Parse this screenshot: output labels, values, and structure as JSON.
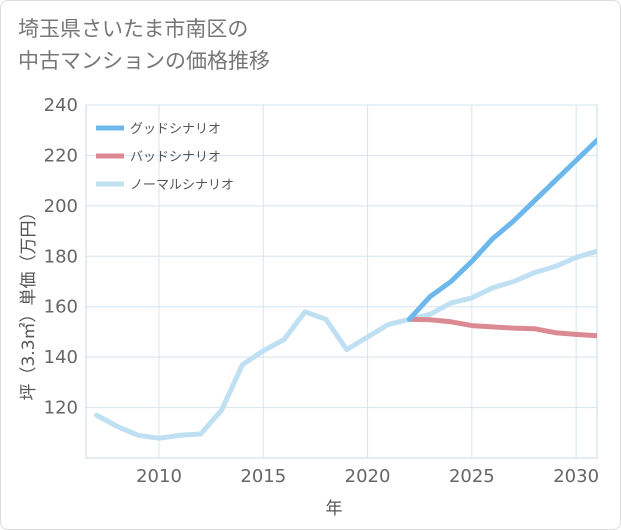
{
  "title": {
    "line1": "埼玉県さいたま市南区の",
    "line2": "中古マンションの価格推移"
  },
  "chart_data": {
    "type": "line",
    "xlabel": "年",
    "ylabel": "坪（3.3㎡）単価（万円）",
    "xlim": [
      2006.5,
      2031
    ],
    "ylim": [
      100,
      240
    ],
    "x_ticks": [
      2010,
      2015,
      2020,
      2025,
      2030
    ],
    "y_ticks": [
      120,
      140,
      160,
      180,
      200,
      220,
      240
    ],
    "grid": true,
    "legend_position": "top-left",
    "series": [
      {
        "name": "グッドシナリオ",
        "color": "#6cb8ec",
        "x": [
          2022,
          2023,
          2024,
          2025,
          2026,
          2027,
          2028,
          2029,
          2030,
          2031
        ],
        "values": [
          155,
          164,
          170,
          178,
          187,
          194,
          202,
          210,
          218,
          226
        ]
      },
      {
        "name": "バッドシナリオ",
        "color": "#db8a93",
        "x": [
          2022,
          2023,
          2024,
          2025,
          2026,
          2027,
          2028,
          2029,
          2030,
          2031
        ],
        "values": [
          155,
          154.8,
          154,
          152.5,
          152,
          151.5,
          151.3,
          149.7,
          149,
          148.5
        ]
      },
      {
        "name": "ノーマルシナリオ",
        "color": "#bfe0f3",
        "x": [
          2007,
          2008,
          2009,
          2010,
          2011,
          2012,
          2013,
          2014,
          2015,
          2016,
          2017,
          2018,
          2019,
          2020,
          2021,
          2022,
          2023,
          2024,
          2025,
          2026,
          2027,
          2028,
          2029,
          2030,
          2031
        ],
        "values": [
          117,
          112.5,
          109,
          107.8,
          109,
          109.5,
          119,
          137,
          142.5,
          147,
          158,
          155,
          143,
          148,
          153,
          155,
          157,
          161.5,
          163.5,
          167.5,
          170,
          173.5,
          176,
          179.5,
          182
        ]
      }
    ]
  }
}
